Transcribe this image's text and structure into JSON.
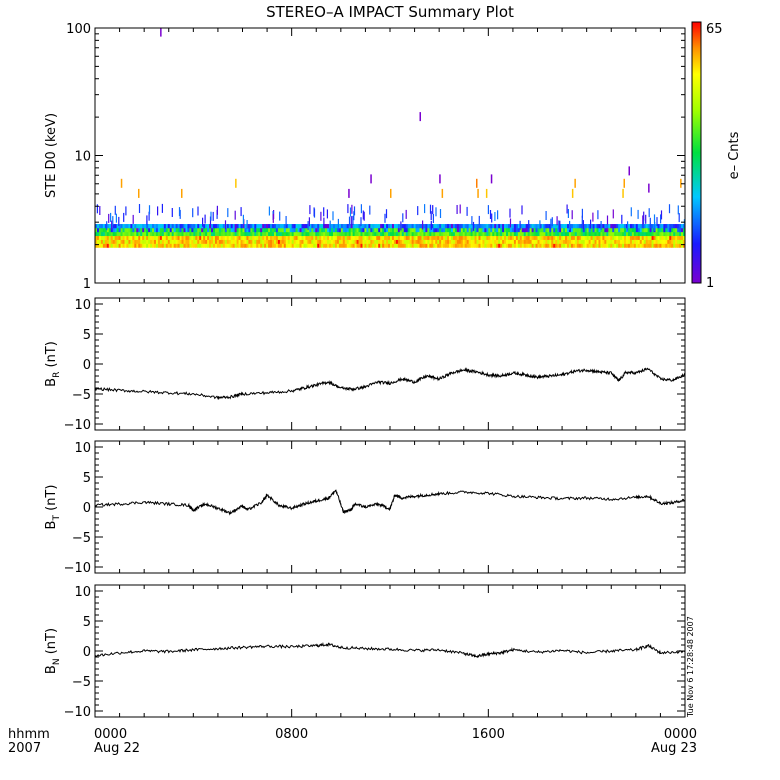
{
  "chart_data": {
    "title": "STEREO–A IMPACT Summary Plot",
    "x_axis": {
      "corner_label_top": "hhmm",
      "corner_label_bottom": "2007",
      "range_hours": [
        0,
        24
      ],
      "ticks": [
        {
          "hour": 0,
          "label": "0000",
          "date": "Aug 22"
        },
        {
          "hour": 8,
          "label": "0800",
          "date": ""
        },
        {
          "hour": 16,
          "label": "1600",
          "date": ""
        },
        {
          "hour": 24,
          "label": "0000",
          "date": "Aug 23"
        }
      ],
      "minor_tick_step_hours": 1
    },
    "timestamp_note": "Tue Nov  6 17:28:48 2007",
    "panels": [
      {
        "id": "ste",
        "type": "heatmap",
        "ylabel": "STE D0 (keV)",
        "yscale": "log",
        "ylim": [
          1,
          100
        ],
        "ytick_labels": [
          "1",
          "10",
          "100"
        ],
        "ytick_values": [
          1,
          10,
          100
        ],
        "colorbar": {
          "label": "e– Cnts",
          "min_label": "1",
          "max_label": "65",
          "min": 1,
          "max": 65
        },
        "dense_band_kev": [
          1.9,
          2.9
        ],
        "sparse_events": [
          {
            "hour": 1.05,
            "kev": 6.0,
            "counts": 40
          },
          {
            "hour": 1.75,
            "kev": 5.0,
            "counts": 40
          },
          {
            "hour": 2.65,
            "kev": 92.0,
            "counts": 1
          },
          {
            "hour": 3.5,
            "kev": 5.0,
            "counts": 40
          },
          {
            "hour": 5.7,
            "kev": 6.0,
            "counts": 35
          },
          {
            "hour": 12.0,
            "kev": 5.0,
            "counts": 40
          },
          {
            "hour": 13.2,
            "kev": 20.0,
            "counts": 1
          },
          {
            "hour": 14.1,
            "kev": 5.0,
            "counts": 40
          },
          {
            "hour": 15.5,
            "kev": 6.0,
            "counts": 45
          },
          {
            "hour": 15.55,
            "kev": 5.0,
            "counts": 40
          },
          {
            "hour": 15.9,
            "kev": 5.0,
            "counts": 35
          },
          {
            "hour": 19.5,
            "kev": 6.0,
            "counts": 40
          },
          {
            "hour": 19.4,
            "kev": 5.0,
            "counts": 35
          },
          {
            "hour": 21.5,
            "kev": 6.0,
            "counts": 40
          },
          {
            "hour": 21.45,
            "kev": 5.0,
            "counts": 35
          },
          {
            "hour": 23.8,
            "kev": 6.0,
            "counts": 40
          },
          {
            "hour": 11.2,
            "kev": 6.5,
            "counts": 1
          },
          {
            "hour": 14.0,
            "kev": 6.5,
            "counts": 1
          },
          {
            "hour": 16.1,
            "kev": 6.5,
            "counts": 1
          },
          {
            "hour": 10.3,
            "kev": 5.0,
            "counts": 1
          },
          {
            "hour": 21.7,
            "kev": 7.5,
            "counts": 1
          },
          {
            "hour": 22.5,
            "kev": 5.5,
            "counts": 1
          }
        ]
      },
      {
        "id": "br",
        "type": "line",
        "ylabel_main": "B",
        "ylabel_sub": "R",
        "ylabel_unit": " (nT)",
        "ylim": [
          -11,
          11
        ],
        "ytick_values": [
          -10,
          -5,
          0,
          5,
          10
        ],
        "ytick_labels": [
          "−10",
          "−5",
          "0",
          "5",
          "10"
        ],
        "x": [
          0,
          1,
          2,
          3,
          4,
          5,
          5.5,
          6,
          7,
          8,
          8.5,
          9,
          9.5,
          10,
          10.5,
          11,
          11.5,
          12,
          12.5,
          13,
          13.5,
          14,
          14.5,
          15,
          15.5,
          16,
          16.5,
          17,
          17.5,
          18,
          18.5,
          19,
          19.5,
          20,
          20.5,
          21,
          21.3,
          21.6,
          22,
          22.5,
          23,
          23.5,
          24
        ],
        "y": [
          -4.1,
          -4.4,
          -4.6,
          -4.8,
          -5.0,
          -5.6,
          -5.5,
          -5.0,
          -4.8,
          -4.5,
          -4.0,
          -3.5,
          -3.0,
          -4.0,
          -4.2,
          -3.8,
          -3.0,
          -3.2,
          -2.5,
          -3.0,
          -2.0,
          -2.5,
          -1.5,
          -1.0,
          -1.3,
          -1.8,
          -2.0,
          -1.5,
          -1.8,
          -2.2,
          -2.0,
          -1.8,
          -1.2,
          -1.0,
          -1.3,
          -1.5,
          -2.8,
          -1.4,
          -1.5,
          -0.8,
          -2.5,
          -2.7,
          -1.8
        ]
      },
      {
        "id": "bt",
        "type": "line",
        "ylabel_main": "B",
        "ylabel_sub": "T",
        "ylabel_unit": " (nT)",
        "ylim": [
          -11,
          11
        ],
        "ytick_values": [
          -10,
          -5,
          0,
          5,
          10
        ],
        "ytick_labels": [
          "−10",
          "−5",
          "0",
          "5",
          "10"
        ],
        "x": [
          0,
          1,
          2,
          3,
          3.8,
          4,
          4.5,
          5,
          5.5,
          6,
          6.2,
          6.8,
          7,
          7.5,
          8,
          8.5,
          9,
          9.5,
          9.8,
          10.1,
          10.4,
          10.6,
          11,
          11.5,
          12,
          12.2,
          12.5,
          13,
          13.5,
          14,
          15,
          16,
          17,
          18,
          19,
          20,
          21,
          22,
          22.5,
          23,
          23.5,
          24
        ],
        "y": [
          0.3,
          0.5,
          0.8,
          0.5,
          0.3,
          -0.5,
          0.5,
          -0.2,
          -1.0,
          0.2,
          -0.5,
          0.8,
          2.0,
          0.2,
          -0.2,
          0.5,
          1.0,
          1.5,
          2.8,
          -0.8,
          -0.5,
          0.5,
          0.0,
          0.5,
          -0.3,
          2.0,
          1.5,
          1.8,
          2.0,
          2.2,
          2.5,
          2.3,
          1.8,
          1.6,
          1.4,
          1.5,
          1.3,
          1.6,
          1.8,
          0.6,
          0.7,
          1.2
        ]
      },
      {
        "id": "bn",
        "type": "line",
        "ylabel_main": "B",
        "ylabel_sub": "N",
        "ylabel_unit": " (nT)",
        "ylim": [
          -11,
          11
        ],
        "ytick_values": [
          -10,
          -5,
          0,
          5,
          10
        ],
        "ytick_labels": [
          "−10",
          "−5",
          "0",
          "5",
          "10"
        ],
        "x": [
          0,
          1,
          2,
          3,
          4,
          5,
          6,
          7,
          8,
          9,
          9.5,
          10,
          11,
          12,
          13,
          14,
          15,
          15.5,
          16,
          16.5,
          17,
          18,
          19,
          20,
          21,
          22,
          22.5,
          23,
          24
        ],
        "y": [
          -0.8,
          -0.3,
          0.0,
          -0.1,
          0.2,
          0.4,
          0.6,
          0.8,
          0.7,
          0.9,
          1.1,
          0.6,
          0.4,
          0.3,
          0.1,
          0.2,
          -0.4,
          -0.9,
          -0.5,
          -0.3,
          0.2,
          -0.2,
          0.1,
          -0.3,
          0.0,
          0.2,
          0.9,
          -0.3,
          -0.1
        ]
      }
    ]
  }
}
